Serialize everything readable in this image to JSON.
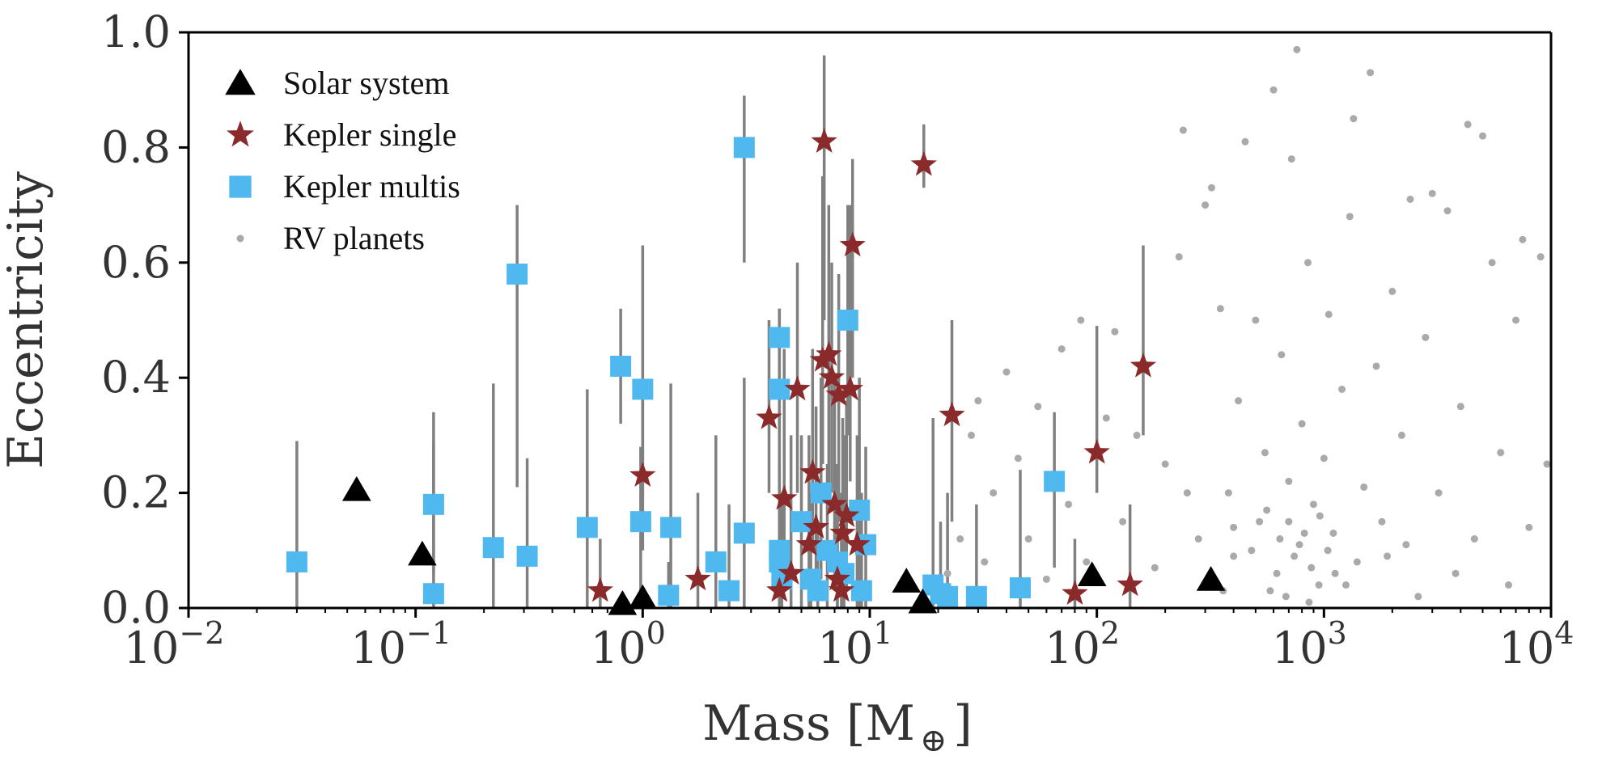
{
  "chart_data": {
    "type": "scatter",
    "xscale": "log",
    "xlim": [
      0.01,
      10000
    ],
    "ylim": [
      0,
      1
    ],
    "xlabel": "Mass [M",
    "xlabel_symbol": "⊕",
    "xlabel_suffix": "]",
    "ylabel": "Eccentricity",
    "x_ticks": [
      {
        "value": 0.01,
        "base": "10",
        "exp": "−2"
      },
      {
        "value": 0.1,
        "base": "10",
        "exp": "−1"
      },
      {
        "value": 1,
        "base": "10",
        "exp": "0"
      },
      {
        "value": 10,
        "base": "10",
        "exp": "1"
      },
      {
        "value": 100,
        "base": "10",
        "exp": "2"
      },
      {
        "value": 1000,
        "base": "10",
        "exp": "3"
      },
      {
        "value": 10000,
        "base": "10",
        "exp": "4"
      }
    ],
    "y_ticks": [
      {
        "value": 0,
        "label": "0.0"
      },
      {
        "value": 0.2,
        "label": "0.2"
      },
      {
        "value": 0.4,
        "label": "0.4"
      },
      {
        "value": 0.6,
        "label": "0.6"
      },
      {
        "value": 0.8,
        "label": "0.8"
      },
      {
        "value": 1,
        "label": "1.0"
      }
    ],
    "grid": false,
    "legend_position": "top-left",
    "colors": {
      "solar": "#000000",
      "single": "#8b2a2a",
      "multis": "#4fb8ee",
      "rv": "#aaaaaa",
      "errorbar": "#808080"
    },
    "series": [
      {
        "name": "Solar system",
        "marker": "triangle",
        "points": [
          [
            0.055,
            0.205
          ],
          [
            0.107,
            0.093
          ],
          [
            0.815,
            0.007
          ],
          [
            1.0,
            0.017
          ],
          [
            14.5,
            0.046
          ],
          [
            17.1,
            0.01
          ],
          [
            95.2,
            0.057
          ],
          [
            317.8,
            0.049
          ]
        ]
      },
      {
        "name": "Kepler single",
        "marker": "star",
        "points": [
          [
            0.65,
            0.03,
            0.0,
            0.12
          ],
          [
            1.0,
            0.23,
            0.1,
            0.4
          ],
          [
            1.75,
            0.05,
            0.0,
            0.2
          ],
          [
            3.6,
            0.33,
            0.2,
            0.5
          ],
          [
            4.2,
            0.19,
            0.05,
            0.45
          ],
          [
            4.5,
            0.06,
            0.0,
            0.3
          ],
          [
            4.8,
            0.38,
            0.2,
            0.6
          ],
          [
            5.6,
            0.235,
            0.1,
            0.45
          ],
          [
            5.8,
            0.14,
            0.02,
            0.35
          ],
          [
            6.2,
            0.43,
            0.25,
            0.75
          ],
          [
            6.3,
            0.81,
            0.5,
            0.96
          ],
          [
            6.6,
            0.44,
            0.2,
            0.7
          ],
          [
            6.8,
            0.4,
            0.2,
            0.6
          ],
          [
            7.0,
            0.18,
            0.03,
            0.4
          ],
          [
            7.3,
            0.37,
            0.15,
            0.58
          ],
          [
            7.6,
            0.13,
            0.02,
            0.33
          ],
          [
            7.9,
            0.16,
            0.03,
            0.36
          ],
          [
            8.2,
            0.38,
            0.22,
            0.7
          ],
          [
            8.4,
            0.63,
            0.4,
            0.78
          ],
          [
            8.8,
            0.11,
            0.0,
            0.3
          ],
          [
            5.4,
            0.11,
            0.0,
            0.3
          ],
          [
            4.0,
            0.03,
            0.0,
            0.15
          ],
          [
            7.2,
            0.05,
            0.0,
            0.25
          ],
          [
            7.5,
            0.03,
            0.0,
            0.2
          ],
          [
            17.3,
            0.77,
            0.73,
            0.84
          ],
          [
            23.0,
            0.335,
            0.15,
            0.5
          ],
          [
            80,
            0.025,
            0.0,
            0.12
          ],
          [
            100,
            0.27,
            0.2,
            0.49
          ],
          [
            140,
            0.04,
            0.0,
            0.18
          ],
          [
            160,
            0.42,
            0.3,
            0.63
          ]
        ]
      },
      {
        "name": "Kepler multis",
        "marker": "square",
        "points": [
          [
            0.03,
            0.08,
            0.0,
            0.29
          ],
          [
            0.12,
            0.18,
            0.06,
            0.34
          ],
          [
            0.12,
            0.025,
            0.0,
            0.29
          ],
          [
            0.22,
            0.105,
            0.0,
            0.39
          ],
          [
            0.28,
            0.58,
            0.21,
            0.7
          ],
          [
            0.31,
            0.09,
            0.0,
            0.26
          ],
          [
            0.57,
            0.14,
            0.0,
            0.38
          ],
          [
            0.8,
            0.42,
            0.32,
            0.52
          ],
          [
            0.98,
            0.15,
            0.0,
            0.28
          ],
          [
            1.0,
            0.38,
            0.19,
            0.63
          ],
          [
            1.33,
            0.14,
            0.0,
            0.39
          ],
          [
            1.3,
            0.022,
            0.0,
            0.08
          ],
          [
            2.1,
            0.08,
            0.0,
            0.3
          ],
          [
            2.4,
            0.03,
            0.0,
            0.18
          ],
          [
            2.8,
            0.8,
            0.6,
            0.89
          ],
          [
            2.8,
            0.13,
            0.0,
            0.4
          ],
          [
            4.0,
            0.47,
            0.3,
            0.52
          ],
          [
            4.0,
            0.38,
            0.2,
            0.52
          ],
          [
            4.0,
            0.1,
            0.0,
            0.3
          ],
          [
            4.0,
            0.08,
            0.0,
            0.25
          ],
          [
            4.1,
            0.05,
            0.0,
            0.2
          ],
          [
            5.0,
            0.15,
            0.0,
            0.3
          ],
          [
            5.5,
            0.05,
            0.0,
            0.2
          ],
          [
            5.9,
            0.03,
            0.0,
            0.15
          ],
          [
            6.1,
            0.2,
            0.05,
            0.4
          ],
          [
            6.5,
            0.1,
            0.0,
            0.25
          ],
          [
            7.2,
            0.08,
            0.0,
            0.25
          ],
          [
            7.7,
            0.06,
            0.0,
            0.3
          ],
          [
            8.0,
            0.5,
            0.3,
            0.7
          ],
          [
            9.0,
            0.17,
            0.0,
            0.4
          ],
          [
            9.2,
            0.03,
            0.0,
            0.2
          ],
          [
            9.6,
            0.11,
            0.0,
            0.28
          ],
          [
            19,
            0.04,
            0.0,
            0.33
          ],
          [
            22,
            0.02,
            0.0,
            0.2
          ],
          [
            29.5,
            0.02,
            0.0,
            0.18
          ],
          [
            46,
            0.035,
            0.0,
            0.24
          ],
          [
            65,
            0.22,
            0.07,
            0.34
          ],
          [
            20.5,
            0.025,
            0.0,
            0.15
          ]
        ]
      },
      {
        "name": "RV planets",
        "marker": "dot",
        "points": [
          [
            22,
            0.06
          ],
          [
            25,
            0.12
          ],
          [
            28,
            0.3
          ],
          [
            30,
            0.36
          ],
          [
            32,
            0.08
          ],
          [
            35,
            0.2
          ],
          [
            40,
            0.41
          ],
          [
            45,
            0.26
          ],
          [
            50,
            0.12
          ],
          [
            55,
            0.35
          ],
          [
            60,
            0.05
          ],
          [
            70,
            0.45
          ],
          [
            75,
            0.18
          ],
          [
            85,
            0.5
          ],
          [
            90,
            0.08
          ],
          [
            110,
            0.33
          ],
          [
            120,
            0.48
          ],
          [
            130,
            0.15
          ],
          [
            150,
            0.3
          ],
          [
            180,
            0.07
          ],
          [
            200,
            0.25
          ],
          [
            230,
            0.61
          ],
          [
            240,
            0.83
          ],
          [
            250,
            0.2
          ],
          [
            280,
            0.12
          ],
          [
            300,
            0.7
          ],
          [
            320,
            0.73
          ],
          [
            350,
            0.52
          ],
          [
            380,
            0.2
          ],
          [
            400,
            0.09
          ],
          [
            420,
            0.36
          ],
          [
            450,
            0.81
          ],
          [
            500,
            0.5
          ],
          [
            520,
            0.15
          ],
          [
            550,
            0.27
          ],
          [
            600,
            0.9
          ],
          [
            620,
            0.06
          ],
          [
            650,
            0.44
          ],
          [
            700,
            0.22
          ],
          [
            720,
            0.78
          ],
          [
            760,
            0.97
          ],
          [
            780,
            0.11
          ],
          [
            800,
            0.32
          ],
          [
            850,
            0.6
          ],
          [
            900,
            0.18
          ],
          [
            950,
            0.04
          ],
          [
            1000,
            0.26
          ],
          [
            1050,
            0.51
          ],
          [
            1100,
            0.13
          ],
          [
            1200,
            0.38
          ],
          [
            1300,
            0.68
          ],
          [
            1350,
            0.85
          ],
          [
            1400,
            0.08
          ],
          [
            1500,
            0.21
          ],
          [
            1600,
            0.93
          ],
          [
            1700,
            0.42
          ],
          [
            1800,
            0.15
          ],
          [
            2000,
            0.55
          ],
          [
            2200,
            0.3
          ],
          [
            2400,
            0.71
          ],
          [
            2600,
            0.02
          ],
          [
            2800,
            0.47
          ],
          [
            3000,
            0.72
          ],
          [
            3200,
            0.2
          ],
          [
            3500,
            0.69
          ],
          [
            4000,
            0.35
          ],
          [
            4300,
            0.84
          ],
          [
            4600,
            0.12
          ],
          [
            5000,
            0.82
          ],
          [
            5500,
            0.6
          ],
          [
            6000,
            0.27
          ],
          [
            7000,
            0.5
          ],
          [
            7500,
            0.64
          ],
          [
            8000,
            0.14
          ],
          [
            9000,
            0.61
          ],
          [
            9600,
            0.25
          ],
          [
            400,
            0.14
          ],
          [
            480,
            0.1
          ],
          [
            560,
            0.17
          ],
          [
            640,
            0.12
          ],
          [
            700,
            0.15
          ],
          [
            740,
            0.09
          ],
          [
            820,
            0.13
          ],
          [
            880,
            0.07
          ],
          [
            960,
            0.16
          ],
          [
            1040,
            0.1
          ],
          [
            1120,
            0.06
          ],
          [
            580,
            0.03
          ],
          [
            680,
            0.02
          ],
          [
            860,
            0.01
          ],
          [
            1250,
            0.04
          ],
          [
            310,
            0.05
          ],
          [
            360,
            0.03
          ],
          [
            1900,
            0.09
          ],
          [
            2300,
            0.11
          ],
          [
            3800,
            0.06
          ],
          [
            6500,
            0.04
          ]
        ]
      }
    ]
  }
}
